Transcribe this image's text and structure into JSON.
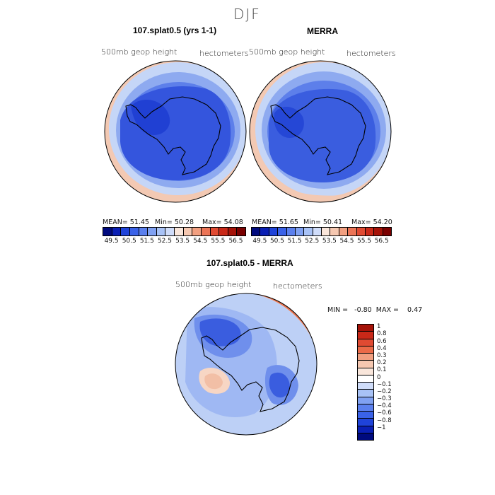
{
  "chart_data": [
    {
      "type": "heatmap",
      "title": "107.splat0.5 (yrs 1-1)",
      "variable_label": "500mb geop height",
      "units_label": "hectometers",
      "stats": {
        "mean": "MEAN=  51.45",
        "min": "Min=  50.28",
        "max": "Max=  54.08"
      },
      "levels": [
        "49.5",
        "50.5",
        "51.5",
        "52.5",
        "53.5",
        "54.5",
        "55.5",
        "56.5"
      ],
      "level_colors": [
        "#000a7e",
        "#0a1fb4",
        "#1f43d9",
        "#3a62e8",
        "#5b80ee",
        "#80a1f2",
        "#a8c2f6",
        "#cfdcf9",
        "#f9e6db",
        "#f5c7b0",
        "#f19f80",
        "#eb7456",
        "#e04a32",
        "#c92818",
        "#a51208",
        "#7a0000"
      ],
      "fill_colors": {
        "outer": "#f3c9b3",
        "ring1": "#c5d6f7",
        "ring2": "#8eaaf0",
        "ring3": "#5d7fea",
        "interior": "#3455dd",
        "core": "#2040d3"
      }
    },
    {
      "type": "heatmap",
      "title": "MERRA",
      "variable_label": "500mb geop height",
      "units_label": "hectometers",
      "stats": {
        "mean": "MEAN=  51.65",
        "min": "Min=  50.41",
        "max": "Max=  54.20"
      },
      "levels": [
        "49.5",
        "50.5",
        "51.5",
        "52.5",
        "53.5",
        "54.5",
        "55.5",
        "56.5"
      ],
      "level_colors": [
        "#000a7e",
        "#0a1fb4",
        "#1f43d9",
        "#3a62e8",
        "#5b80ee",
        "#80a1f2",
        "#a8c2f6",
        "#cfdcf9",
        "#f9e6db",
        "#f5c7b0",
        "#f19f80",
        "#eb7456",
        "#e04a32",
        "#c92818",
        "#a51208",
        "#7a0000"
      ],
      "fill_colors": {
        "outer": "#f3c9b3",
        "ring1": "#c5d6f7",
        "ring2": "#8eaaf0",
        "ring3": "#5d7fea",
        "interior": "#3a5ddf",
        "core": "#2547d6"
      }
    },
    {
      "type": "heatmap",
      "title": "107.splat0.5 - MERRA",
      "variable_label": "500mb geop height",
      "units_label": "hectometers",
      "stats": {
        "minmax": "MIN =   -0.80  MAX =    0.47"
      },
      "levels": [
        "1",
        "0.8",
        "0.6",
        "0.4",
        "0.3",
        "0.2",
        "0.1",
        "0",
        "−0.1",
        "−0.2",
        "−0.3",
        "−0.4",
        "−0.6",
        "−0.8",
        "−1"
      ],
      "level_colors": [
        "#a51208",
        "#c92818",
        "#e04a32",
        "#eb6a48",
        "#f19f80",
        "#f5c7b0",
        "#f9e6db",
        "#ffffff",
        "#cfdcf9",
        "#a8c2f6",
        "#80a1f2",
        "#5b80ee",
        "#3a62e8",
        "#1f43d9",
        "#0a1fb4",
        "#000a7e"
      ],
      "fill_colors": {
        "background": "#bdd0f6",
        "band_warm": "#f4b79b",
        "band_hot": "#e8724e",
        "blue_light": "#9fb8f3",
        "blue_mid": "#6f8fec",
        "blue_dark": "#3a5ddf",
        "warm_patch": "#f7d6c4"
      }
    }
  ],
  "figure": {
    "title": "DJF"
  }
}
